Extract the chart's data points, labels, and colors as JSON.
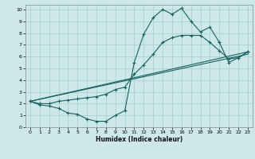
{
  "xlabel": "Humidex (Indice chaleur)",
  "bg_color": "#cce8e8",
  "grid_color": "#aacccc",
  "line_color": "#1a6060",
  "xlim": [
    -0.5,
    23.5
  ],
  "ylim": [
    0,
    10.4
  ],
  "xticks": [
    0,
    1,
    2,
    3,
    4,
    5,
    6,
    7,
    8,
    9,
    10,
    11,
    12,
    13,
    14,
    15,
    16,
    17,
    18,
    19,
    20,
    21,
    22,
    23
  ],
  "yticks": [
    0,
    1,
    2,
    3,
    4,
    5,
    6,
    7,
    8,
    9,
    10
  ],
  "series": [
    {
      "x": [
        0,
        1,
        2,
        3,
        4,
        5,
        6,
        7,
        8,
        9,
        10,
        11,
        12,
        13,
        14,
        15,
        16,
        17,
        18,
        19,
        20,
        21,
        22,
        23
      ],
      "y": [
        2.2,
        1.9,
        1.8,
        1.6,
        1.2,
        1.1,
        0.7,
        0.5,
        0.5,
        1.0,
        1.4,
        5.5,
        7.9,
        9.3,
        10.0,
        9.6,
        10.1,
        9.0,
        8.1,
        8.5,
        7.2,
        5.5,
        5.9,
        6.4
      ],
      "has_markers": true
    },
    {
      "x": [
        0,
        1,
        2,
        3,
        4,
        5,
        6,
        7,
        8,
        9,
        10,
        11,
        12,
        13,
        14,
        15,
        16,
        17,
        18,
        19,
        20,
        21,
        22,
        23
      ],
      "y": [
        2.2,
        2.0,
        2.0,
        2.2,
        2.3,
        2.4,
        2.5,
        2.6,
        2.8,
        3.2,
        3.4,
        4.5,
        5.3,
        6.2,
        7.2,
        7.6,
        7.8,
        7.8,
        7.8,
        7.2,
        6.5,
        5.8,
        5.9,
        6.4
      ],
      "has_markers": true
    },
    {
      "x": [
        0,
        23
      ],
      "y": [
        2.2,
        6.4
      ],
      "has_markers": false
    },
    {
      "x": [
        0,
        23
      ],
      "y": [
        2.2,
        6.2
      ],
      "has_markers": false
    }
  ]
}
